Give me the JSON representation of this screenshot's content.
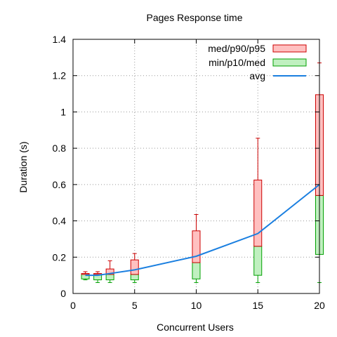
{
  "chart_data": {
    "type": "box",
    "title": "Pages Response time",
    "xlabel": "Concurrent Users",
    "ylabel": "Duration (s)",
    "xlim": [
      0,
      20
    ],
    "ylim": [
      0,
      1.4
    ],
    "xticks": [
      0,
      5,
      10,
      15,
      20
    ],
    "yticks": [
      0,
      0.2,
      0.4,
      0.6,
      0.8,
      1,
      1.2,
      1.4
    ],
    "xtick_labels": [
      "0",
      "5",
      "10",
      "15",
      "20"
    ],
    "ytick_labels": [
      "0",
      "0.2",
      "0.4",
      "0.6",
      "0.8",
      "1",
      "1.2",
      "1.4"
    ],
    "grid": true,
    "legend_position": "top-right",
    "series_labels": {
      "upper_box": "med/p90/p95",
      "lower_box": "min/p10/med",
      "avg": "avg"
    },
    "colors": {
      "upper_fill": "#ffc0c0",
      "upper_stroke": "#cc0000",
      "lower_fill": "#c0f0c0",
      "lower_stroke": "#00a000",
      "avg_line": "#1a7fe0",
      "grid": "#999999"
    },
    "points": [
      {
        "x": 1,
        "min": 0.075,
        "p10": 0.08,
        "med": 0.105,
        "p90": 0.11,
        "p95": 0.12
      },
      {
        "x": 2,
        "min": 0.06,
        "p10": 0.075,
        "med": 0.105,
        "p90": 0.11,
        "p95": 0.12
      },
      {
        "x": 3,
        "min": 0.06,
        "p10": 0.075,
        "med": 0.105,
        "p90": 0.135,
        "p95": 0.18
      },
      {
        "x": 5,
        "min": 0.06,
        "p10": 0.075,
        "med": 0.105,
        "p90": 0.185,
        "p95": 0.22
      },
      {
        "x": 10,
        "min": 0.06,
        "p10": 0.08,
        "med": 0.17,
        "p90": 0.345,
        "p95": 0.435
      },
      {
        "x": 15,
        "min": 0.06,
        "p10": 0.1,
        "med": 0.26,
        "p90": 0.625,
        "p95": 0.855
      },
      {
        "x": 20,
        "min": 0.06,
        "p10": 0.215,
        "med": 0.54,
        "p90": 1.095,
        "p95": 1.27
      }
    ],
    "avg": {
      "x": [
        1,
        2,
        3,
        5,
        10,
        15,
        20
      ],
      "y": [
        0.1,
        0.1,
        0.11,
        0.13,
        0.205,
        0.33,
        0.6
      ]
    }
  }
}
